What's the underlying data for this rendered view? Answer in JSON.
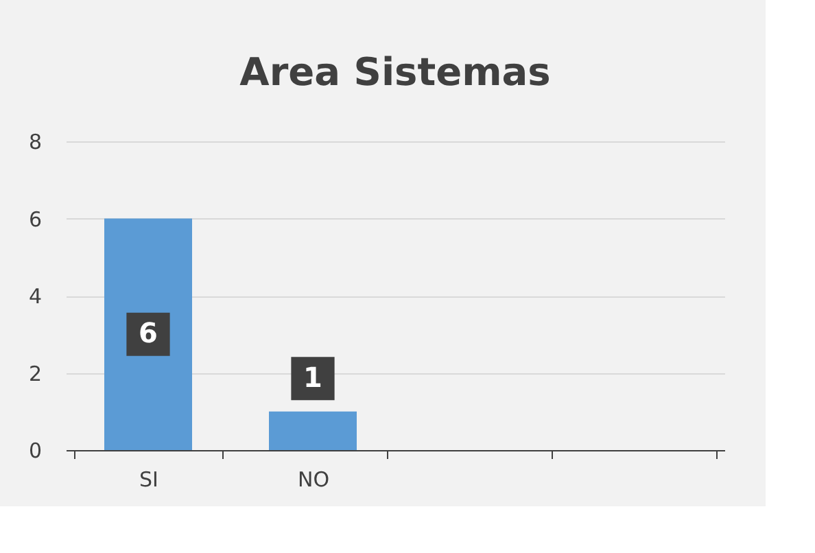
{
  "chart_data": {
    "type": "bar",
    "title": "Area Sistemas",
    "categories": [
      "SI",
      "NO",
      null,
      null
    ],
    "values": [
      6,
      1,
      null,
      null
    ],
    "color": "#5b9bd5",
    "ylim": [
      0,
      8
    ],
    "yticks": [
      0,
      2,
      4,
      6,
      8
    ],
    "grid": "y",
    "data_labels": true
  }
}
